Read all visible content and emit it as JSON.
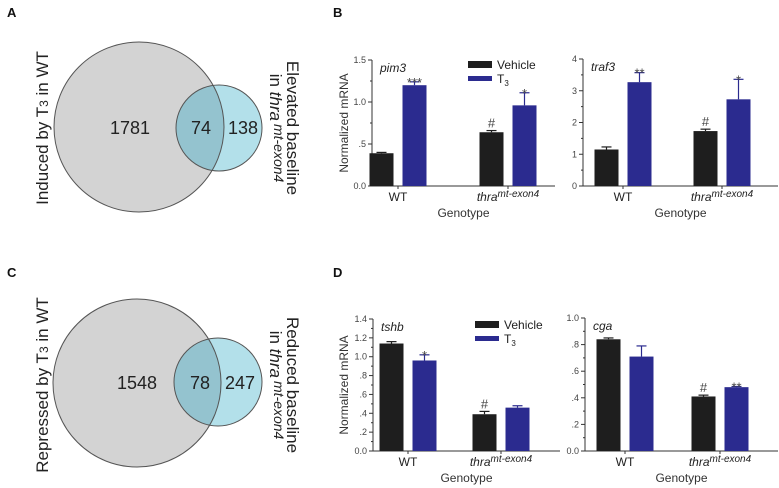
{
  "colors": {
    "vehicle": "#1e1e1e",
    "t3": "#2b2b8f",
    "venn_large": "#d3d3d3",
    "venn_small": "#b3e0ea",
    "venn_overlap": "#94c3cf",
    "venn_stroke": "#555555"
  },
  "panels": {
    "A": {
      "letter": "A",
      "left_label_main": "Induced by T",
      "left_label_sub": "3",
      "left_label_rest": " in WT",
      "right_label_line1": "Elevated baseline",
      "right_label_line2_prefix": "in ",
      "right_label_line2_gene": "thra",
      "right_label_line2_sup": "mt-exon4",
      "only_left": "1781",
      "overlap": "74",
      "only_right": "138"
    },
    "C": {
      "letter": "C",
      "left_label_main": "Repressed by T",
      "left_label_sub": "3",
      "left_label_rest": " in WT",
      "right_label_line1": "Reduced baseline",
      "right_label_line2_prefix": "in ",
      "right_label_line2_gene": "thra",
      "right_label_line2_sup": "mt-exon4",
      "only_left": "1548",
      "overlap": "78",
      "only_right": "247"
    },
    "B": {
      "letter": "B"
    },
    "D": {
      "letter": "D"
    }
  },
  "legend": {
    "vehicle": "Vehicle",
    "t3_main": "T",
    "t3_sub": "3"
  },
  "chart_data": [
    {
      "type": "bar",
      "panel": "B",
      "gene": "pim3",
      "ylabel": "Normalized mRNA",
      "xlabel": "Genotype",
      "categories": [
        "WT",
        "thra"
      ],
      "category_sup": [
        "",
        "mt-exon4"
      ],
      "ylim": [
        0,
        1.5
      ],
      "yticks": [
        {
          "v": 0,
          "l": "0.0"
        },
        {
          "v": 0.5,
          "l": ".5"
        },
        {
          "v": 1.0,
          "l": "1.0"
        },
        {
          "v": 1.5,
          "l": "1.5"
        }
      ],
      "series": [
        {
          "name": "Vehicle",
          "values": [
            0.39,
            0.64
          ],
          "errors": [
            0.01,
            0.02
          ],
          "sig": [
            "",
            "#"
          ]
        },
        {
          "name": "T3",
          "values": [
            1.2,
            0.96
          ],
          "errors": [
            0.04,
            0.15
          ],
          "sig": [
            "***",
            "*"
          ]
        }
      ],
      "legend": true
    },
    {
      "type": "bar",
      "panel": "B",
      "gene": "traf3",
      "ylabel": "",
      "xlabel": "Genotype",
      "categories": [
        "WT",
        "thra"
      ],
      "category_sup": [
        "",
        "mt-exon4"
      ],
      "ylim": [
        0,
        4
      ],
      "yticks": [
        {
          "v": 0,
          "l": "0"
        },
        {
          "v": 1,
          "l": "1"
        },
        {
          "v": 2,
          "l": "2"
        },
        {
          "v": 3,
          "l": "3"
        },
        {
          "v": 4,
          "l": "4"
        }
      ],
      "series": [
        {
          "name": "Vehicle",
          "values": [
            1.15,
            1.73
          ],
          "errors": [
            0.08,
            0.06
          ],
          "sig": [
            "",
            "#"
          ]
        },
        {
          "name": "T3",
          "values": [
            3.27,
            2.73
          ],
          "errors": [
            0.3,
            0.63
          ],
          "sig": [
            "**",
            "*"
          ]
        }
      ],
      "legend": false
    },
    {
      "type": "bar",
      "panel": "D",
      "gene": "tshb",
      "ylabel": "Normalized mRNA",
      "xlabel": "Genotype",
      "categories": [
        "WT",
        "thra"
      ],
      "category_sup": [
        "",
        "mt-exon4"
      ],
      "ylim": [
        0,
        1.4
      ],
      "yticks": [
        {
          "v": 0,
          "l": "0.0"
        },
        {
          "v": 0.2,
          "l": ".2"
        },
        {
          "v": 0.4,
          "l": ".4"
        },
        {
          "v": 0.6,
          "l": ".6"
        },
        {
          "v": 0.8,
          "l": ".8"
        },
        {
          "v": 1.0,
          "l": "1.0"
        },
        {
          "v": 1.2,
          "l": "1.2"
        },
        {
          "v": 1.4,
          "l": "1.4"
        }
      ],
      "series": [
        {
          "name": "Vehicle",
          "values": [
            1.14,
            0.39
          ],
          "errors": [
            0.02,
            0.03
          ],
          "sig": [
            "",
            "#"
          ]
        },
        {
          "name": "T3",
          "values": [
            0.96,
            0.46
          ],
          "errors": [
            0.06,
            0.02
          ],
          "sig": [
            "*",
            ""
          ]
        }
      ],
      "legend": true
    },
    {
      "type": "bar",
      "panel": "D",
      "gene": "cga",
      "ylabel": "",
      "xlabel": "Genotype",
      "categories": [
        "WT",
        "thra"
      ],
      "category_sup": [
        "",
        "mt-exon4"
      ],
      "ylim": [
        0,
        1.0
      ],
      "yticks": [
        {
          "v": 0,
          "l": "0.0"
        },
        {
          "v": 0.2,
          "l": ".2"
        },
        {
          "v": 0.4,
          "l": ".4"
        },
        {
          "v": 0.6,
          "l": ".6"
        },
        {
          "v": 0.8,
          "l": ".8"
        },
        {
          "v": 1.0,
          "l": "1.0"
        }
      ],
      "series": [
        {
          "name": "Vehicle",
          "values": [
            0.84,
            0.41
          ],
          "errors": [
            0.01,
            0.01
          ],
          "sig": [
            "",
            "#"
          ]
        },
        {
          "name": "T3",
          "values": [
            0.71,
            0.48
          ],
          "errors": [
            0.08,
            0.005
          ],
          "sig": [
            "",
            "**"
          ]
        }
      ],
      "legend": false
    }
  ]
}
